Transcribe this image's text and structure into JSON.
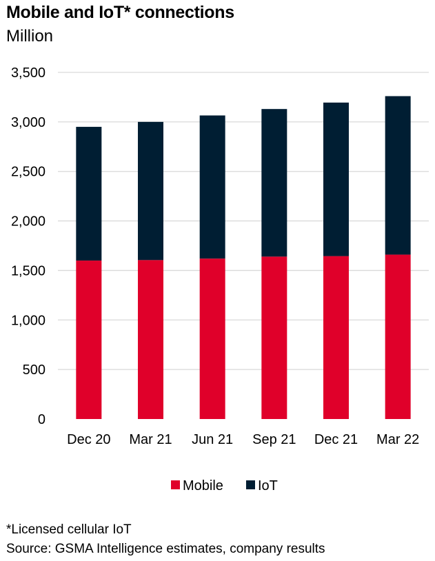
{
  "title": "Mobile and IoT* connections",
  "subtitle": "Million",
  "footnote": "*Licensed cellular IoT",
  "source": "Source: GSMA Intelligence estimates, company results",
  "colors": {
    "mobile": "#e0002a",
    "iot": "#001e33",
    "grid": "#d9d9d9",
    "text": "#000000"
  },
  "chart_data": {
    "type": "bar",
    "stacked": true,
    "categories": [
      "Dec 20",
      "Mar 21",
      "Jun 21",
      "Sep 21",
      "Dec 21",
      "Mar 22"
    ],
    "series": [
      {
        "name": "Mobile",
        "values": [
          1600,
          1605,
          1620,
          1640,
          1645,
          1660
        ]
      },
      {
        "name": "IoT",
        "values": [
          1350,
          1395,
          1445,
          1490,
          1550,
          1600
        ]
      }
    ],
    "totals": [
      2950,
      3000,
      3065,
      3130,
      3195,
      3260
    ],
    "ylim": [
      0,
      3500
    ],
    "yticks": [
      0,
      500,
      1000,
      1500,
      2000,
      2500,
      3000,
      3500
    ],
    "ytick_labels": [
      "0",
      "500",
      "1,000",
      "1,500",
      "2,000",
      "2,500",
      "3,000",
      "3,500"
    ],
    "grid": true,
    "legend_position": "bottom-center"
  }
}
